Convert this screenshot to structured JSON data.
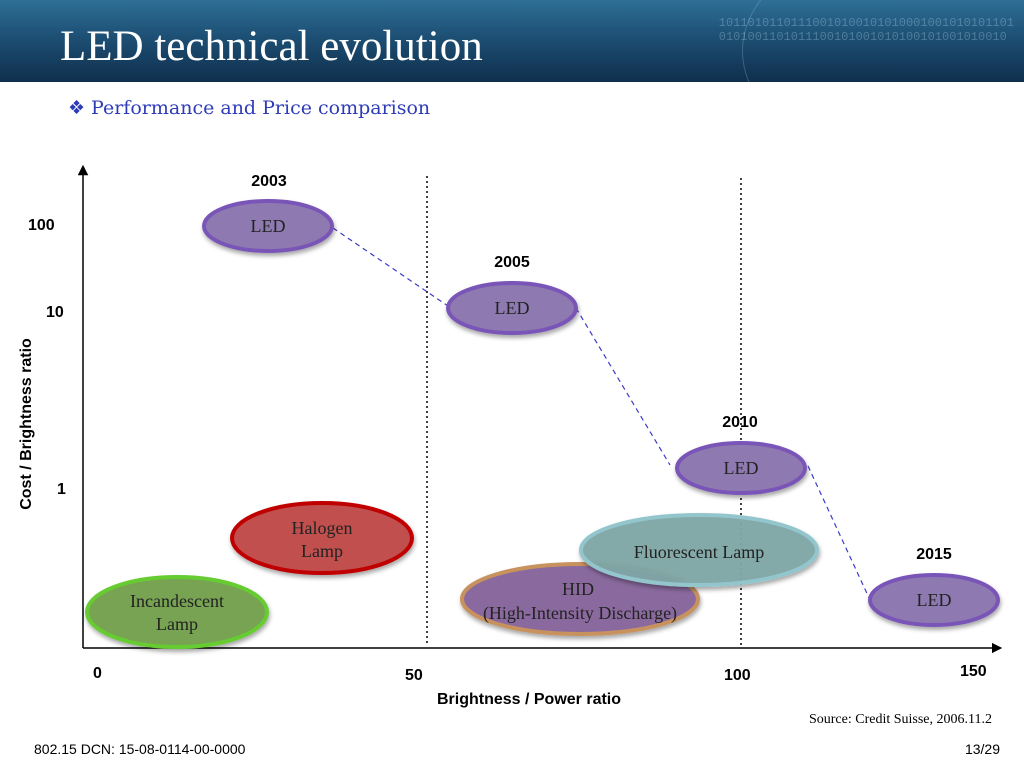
{
  "slide": {
    "title": "LED technical evolution",
    "subtitle": "Performance and Price comparison",
    "source": "Source: Credit Suisse, 2006.11.2",
    "footer_left": "802.15 DCN: 15-08-0114-00-0000",
    "page": "13/29"
  },
  "banner": {
    "binary_lines": [
      "10110101101110010100101010001001010101101",
      "0101001101011100101001010100101001010010"
    ]
  },
  "axes": {
    "x_label": "Brightness / Power ratio",
    "y_label": "Cost / Brightness ratio",
    "x_ticks": [
      "0",
      "50",
      "100",
      "150"
    ],
    "y_ticks": [
      "100",
      "10",
      "1"
    ]
  },
  "years": [
    "2003",
    "2005",
    "2010",
    "2015"
  ],
  "bubbles": {
    "led_2003": "LED",
    "led_2005": "LED",
    "led_2010": "LED",
    "led_2015": "LED",
    "halogen": [
      "Halogen",
      "Lamp"
    ],
    "incandescent": [
      "Incandescent",
      "Lamp"
    ],
    "hid": [
      "HID",
      "(High-Intensity Discharge)"
    ],
    "fluorescent": "Fluorescent Lamp"
  },
  "colors": {
    "led_fill": "#8e7ab0",
    "led_border": "#7a55b8",
    "halogen_fill": "#c0504d",
    "halogen_border": "#c00000",
    "incandescent_fill": "#77a352",
    "incandescent_border": "#66cc33",
    "hid_fill": "#8a6a9e",
    "hid_border": "#c8925e",
    "fluorescent_fill": "#7fa7a6",
    "fluorescent_border": "#93c5cc",
    "connector": "#3b3bc8"
  }
}
